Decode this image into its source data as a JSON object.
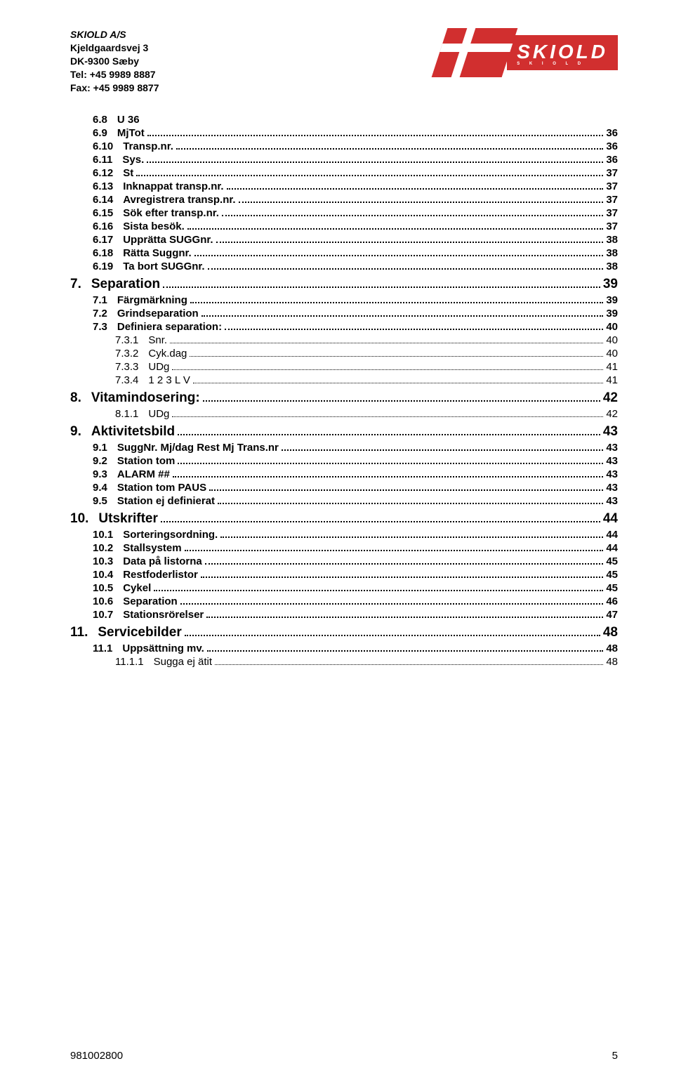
{
  "company": {
    "name": "SKIOLD A/S",
    "addr1": "Kjeldgaardsvej 3",
    "addr2": "DK-9300 Sæby",
    "tel": "Tel: +45 9989 8887",
    "fax": "Fax: +45 9989 8877"
  },
  "logo": {
    "brand": "SKIOLD",
    "sub": "S  K  I  O  L  D"
  },
  "toc": [
    {
      "lvl": 2,
      "num": "6.8",
      "label": "U 36",
      "page": ""
    },
    {
      "lvl": 2,
      "num": "6.9",
      "label": "MjTot",
      "page": "36"
    },
    {
      "lvl": 2,
      "num": "6.10",
      "label": "Transp.nr.",
      "page": "36"
    },
    {
      "lvl": 2,
      "num": "6.11",
      "label": "Sys.",
      "page": "36"
    },
    {
      "lvl": 2,
      "num": "6.12",
      "label": "St",
      "page": "37"
    },
    {
      "lvl": 2,
      "num": "6.13",
      "label": "Inknappat transp.nr.",
      "page": "37"
    },
    {
      "lvl": 2,
      "num": "6.14",
      "label": "Avregistrera transp.nr.",
      "page": "37"
    },
    {
      "lvl": 2,
      "num": "6.15",
      "label": "Sök efter transp.nr.",
      "page": "37"
    },
    {
      "lvl": 2,
      "num": "6.16",
      "label": "Sista  besök.",
      "page": "37"
    },
    {
      "lvl": 2,
      "num": "6.17",
      "label": "Upprätta SUGGnr.",
      "page": "38"
    },
    {
      "lvl": 2,
      "num": "6.18",
      "label": "Rätta Suggnr.",
      "page": "38"
    },
    {
      "lvl": 2,
      "num": "6.19",
      "label": "Ta bort SUGGnr.",
      "page": "38"
    },
    {
      "lvl": 1,
      "num": "7.",
      "label": "Separation",
      "page": "39"
    },
    {
      "lvl": 2,
      "num": "7.1",
      "label": "Färgmärkning",
      "page": "39"
    },
    {
      "lvl": 2,
      "num": "7.2",
      "label": "Grindseparation",
      "page": "39"
    },
    {
      "lvl": 2,
      "num": "7.3",
      "label": "Definiera separation:",
      "page": "40"
    },
    {
      "lvl": 3,
      "num": "7.3.1",
      "label": "Snr.",
      "page": "40"
    },
    {
      "lvl": 3,
      "num": "7.3.2",
      "label": "Cyk.dag",
      "page": "40"
    },
    {
      "lvl": 3,
      "num": "7.3.3",
      "label": "UDg",
      "page": "41"
    },
    {
      "lvl": 3,
      "num": "7.3.4",
      "label": "1  2  3 L V",
      "page": "41"
    },
    {
      "lvl": 1,
      "num": "8.",
      "label": "Vitamindosering:",
      "page": "42"
    },
    {
      "lvl": 3,
      "num": "8.1.1",
      "label": "UDg",
      "page": "42"
    },
    {
      "lvl": 1,
      "num": "9.",
      "label": "Aktivitetsbild",
      "page": "43"
    },
    {
      "lvl": 2,
      "num": "9.1",
      "label": "SuggNr. Mj/dag Rest Mj Trans.nr",
      "page": "43"
    },
    {
      "lvl": 2,
      "num": "9.2",
      "label": "Station tom",
      "page": "43"
    },
    {
      "lvl": 2,
      "num": "9.3",
      "label": "ALARM ##",
      "page": "43"
    },
    {
      "lvl": 2,
      "num": "9.4",
      "label": "Station tom   PAUS",
      "page": "43"
    },
    {
      "lvl": 2,
      "num": "9.5",
      "label": "Station ej definierat",
      "page": "43"
    },
    {
      "lvl": 1,
      "num": "10.",
      "label": "Utskrifter",
      "page": "44"
    },
    {
      "lvl": 2,
      "num": "10.1",
      "label": "Sorteringsordning.",
      "page": "44"
    },
    {
      "lvl": 2,
      "num": "10.2",
      "label": "Stallsystem",
      "page": "44"
    },
    {
      "lvl": 2,
      "num": "10.3",
      "label": "Data på listorna",
      "page": "45"
    },
    {
      "lvl": 2,
      "num": "10.4",
      "label": "Restfoderlistor",
      "page": "45"
    },
    {
      "lvl": 2,
      "num": "10.5",
      "label": "Cykel",
      "page": "45"
    },
    {
      "lvl": 2,
      "num": "10.6",
      "label": "Separation",
      "page": "46"
    },
    {
      "lvl": 2,
      "num": "10.7",
      "label": "Stationsrörelser",
      "page": "47"
    },
    {
      "lvl": 1,
      "num": "11.",
      "label": "Servicebilder",
      "page": "48"
    },
    {
      "lvl": 2,
      "num": "11.1",
      "label": "Uppsättning mv.",
      "page": "48"
    },
    {
      "lvl": 3,
      "num": "11.1.1",
      "label": "Sugga ej ätit",
      "page": "48"
    }
  ],
  "footer": {
    "doc": "981002800",
    "page": "5"
  },
  "colors": {
    "brand_red": "#d12f2f",
    "text": "#000000",
    "bg": "#ffffff"
  }
}
